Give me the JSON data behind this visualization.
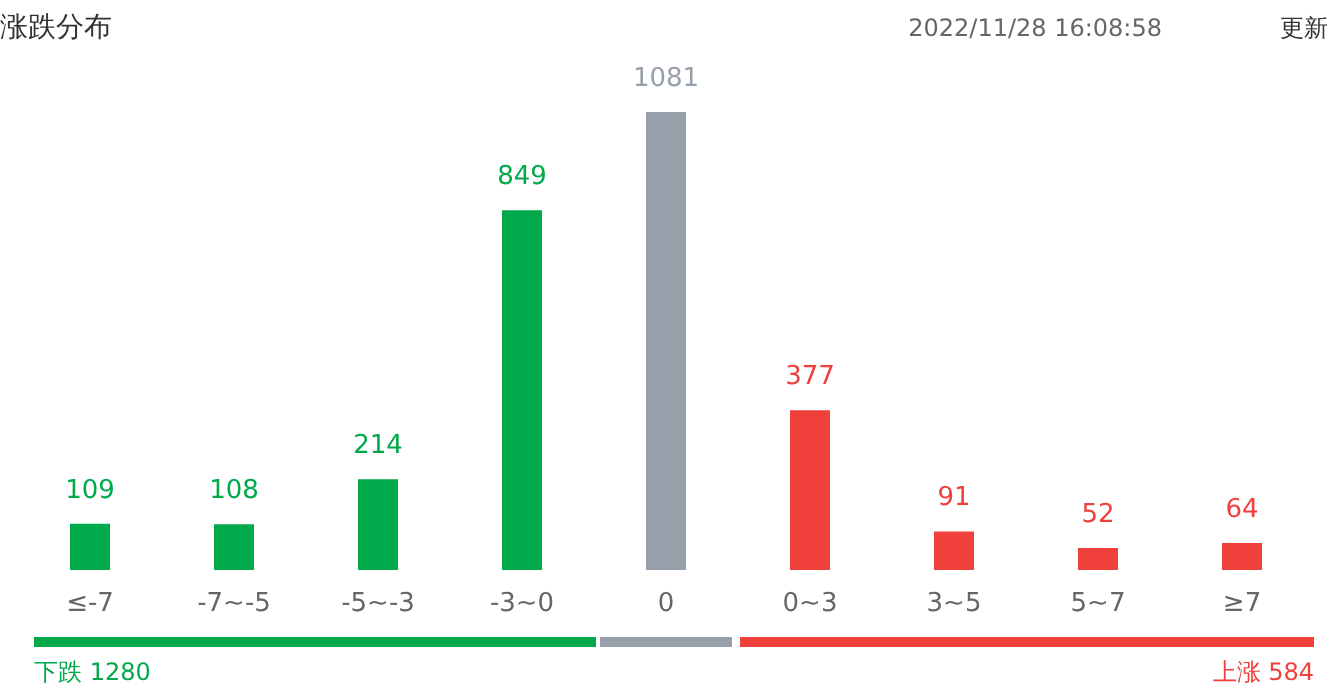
{
  "chart_data": {
    "type": "bar",
    "title": "涨跌分布",
    "categories": [
      "≤-7",
      "-7~-5",
      "-5~-3",
      "-3~0",
      "0",
      "0~3",
      "3~5",
      "5~7",
      "≥7"
    ],
    "values": [
      109,
      108,
      214,
      849,
      1081,
      377,
      91,
      52,
      64
    ],
    "colors": [
      "#00a94a",
      "#00a94a",
      "#00a94a",
      "#00a94a",
      "#97a0aa",
      "#f0403c",
      "#f0403c",
      "#f0403c",
      "#f0403c"
    ],
    "data_labels": true,
    "grid": false,
    "annotations": [
      "2022/11/28 16:08:58",
      "更新",
      "下跌 1280",
      "上涨 584"
    ]
  }
}
